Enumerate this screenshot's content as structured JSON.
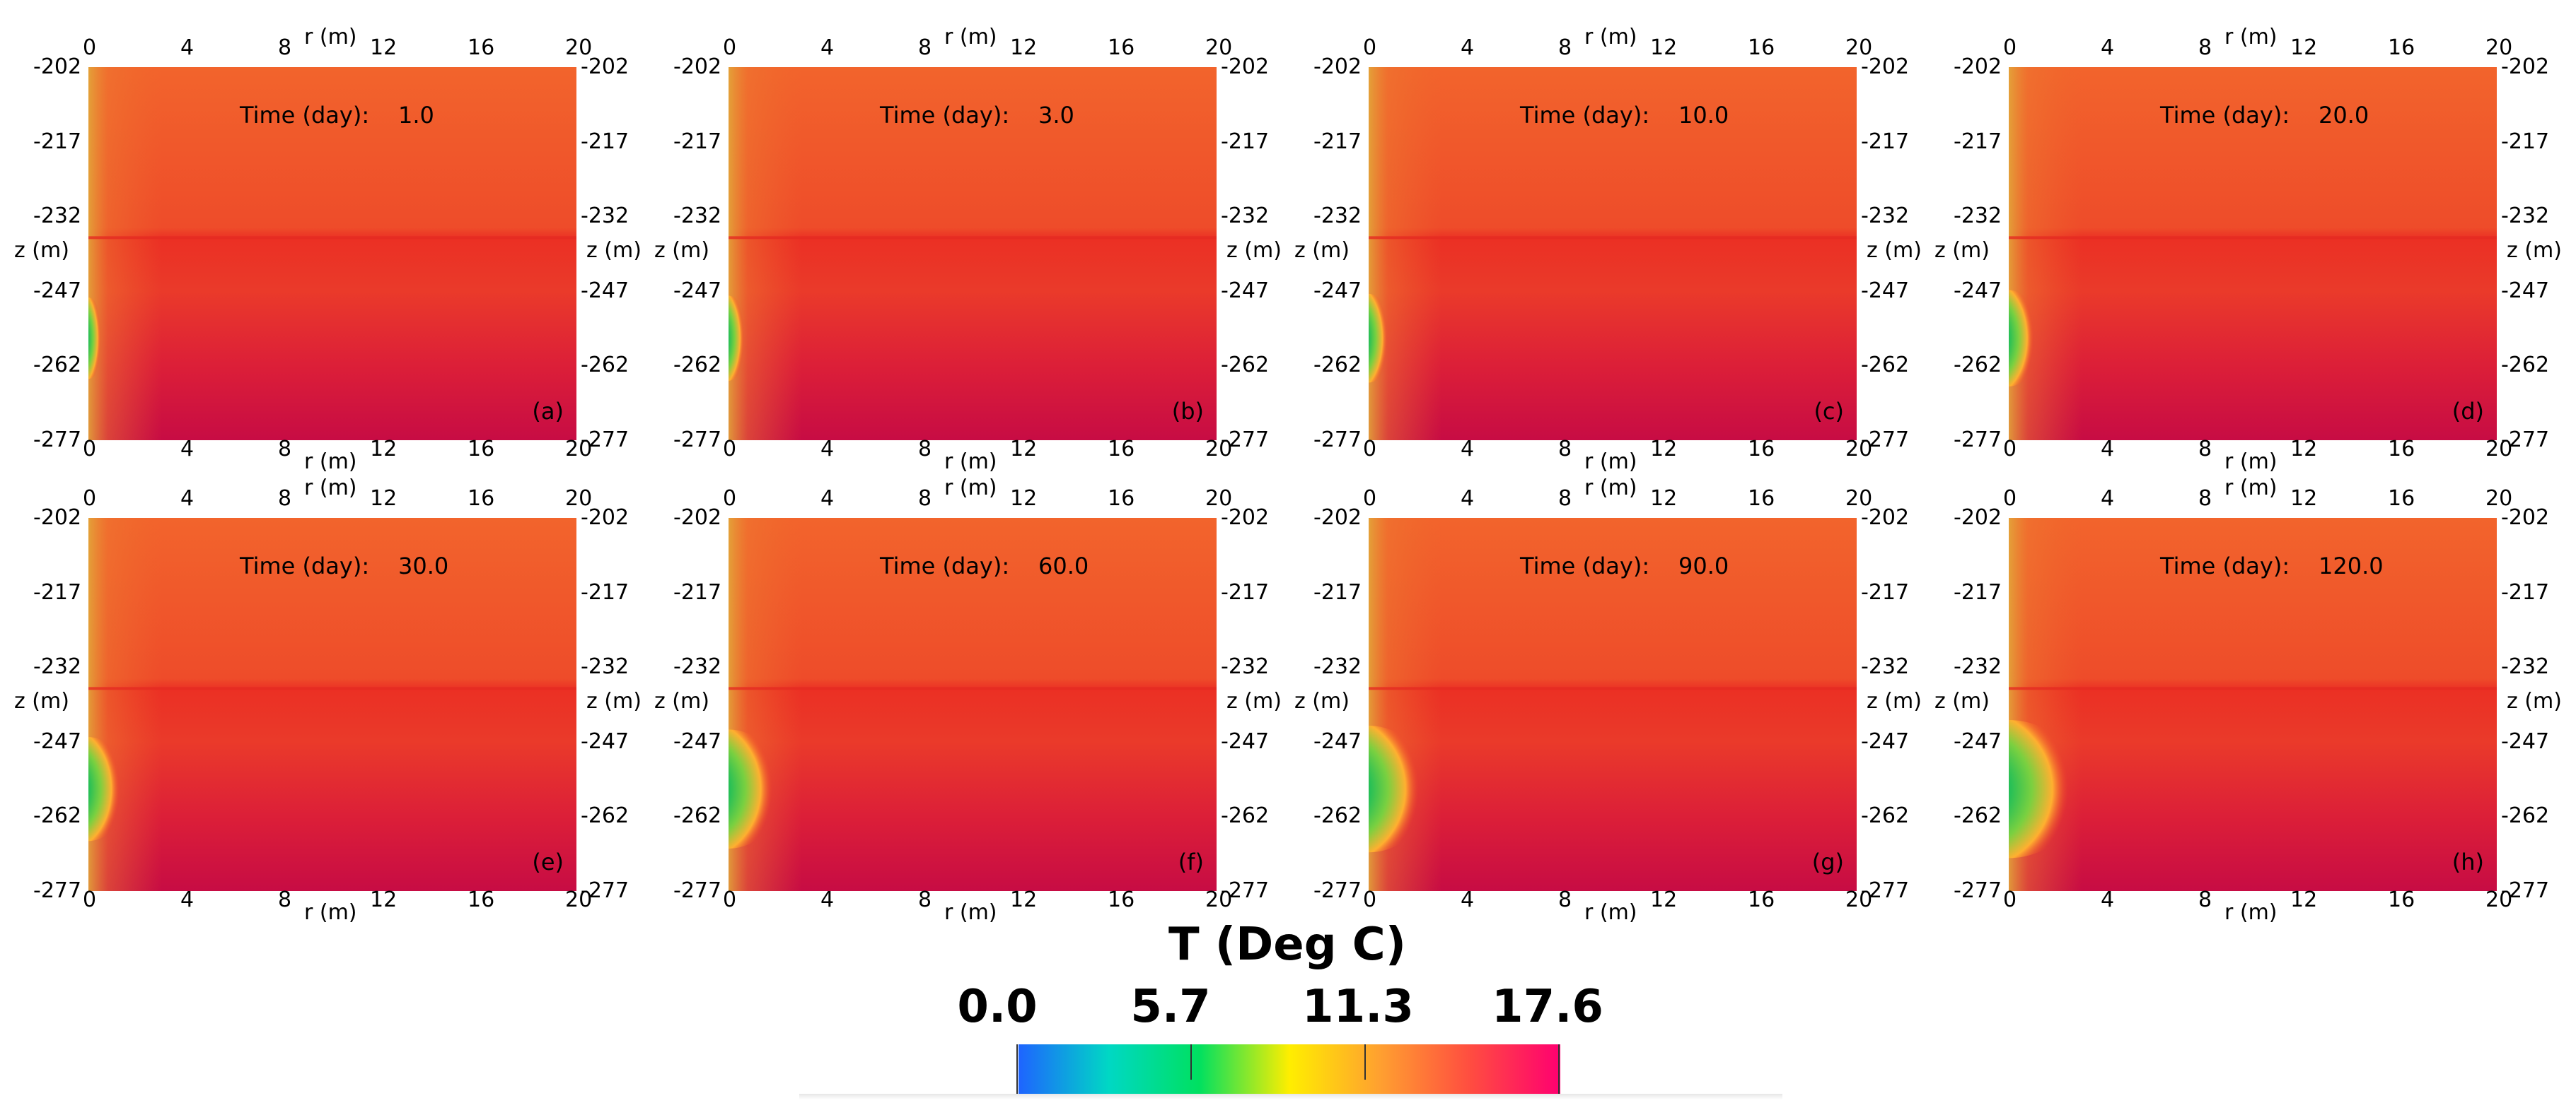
{
  "chart_data": {
    "type": "heatmap",
    "colorbar": {
      "title": "T (Deg C)",
      "ticks": [
        "0.0",
        "5.7",
        "11.3",
        "17.6"
      ],
      "range": [
        0.0,
        17.6
      ],
      "colors": [
        "#1e64ff",
        "#00d8c4",
        "#00e060",
        "#ffee00",
        "#ffa030",
        "#ff4d40",
        "#ff0070"
      ]
    },
    "x_axis": {
      "label": "r (m)",
      "ticks": [
        "0",
        "4",
        "8",
        "12",
        "16",
        "20"
      ],
      "range": [
        0,
        20
      ]
    },
    "y_axis": {
      "label": "z (m)",
      "ticks": [
        "-202",
        "-217",
        "-232",
        "-247",
        "-262",
        "-277"
      ],
      "range": [
        -277,
        -202
      ]
    },
    "time_label": "Time (day):",
    "panels": [
      {
        "label": "(a)",
        "time": "1.0",
        "cold_zone_extent_m": 0.4
      },
      {
        "label": "(b)",
        "time": "3.0",
        "cold_zone_extent_m": 0.5
      },
      {
        "label": "(c)",
        "time": "10.0",
        "cold_zone_extent_m": 0.6
      },
      {
        "label": "(d)",
        "time": "20.0",
        "cold_zone_extent_m": 0.8
      },
      {
        "label": "(e)",
        "time": "30.0",
        "cold_zone_extent_m": 1.0
      },
      {
        "label": "(f)",
        "time": "60.0",
        "cold_zone_extent_m": 1.4
      },
      {
        "label": "(g)",
        "time": "90.0",
        "cold_zone_extent_m": 1.6
      },
      {
        "label": "(h)",
        "time": "120.0",
        "cold_zone_extent_m": 1.9
      }
    ]
  }
}
